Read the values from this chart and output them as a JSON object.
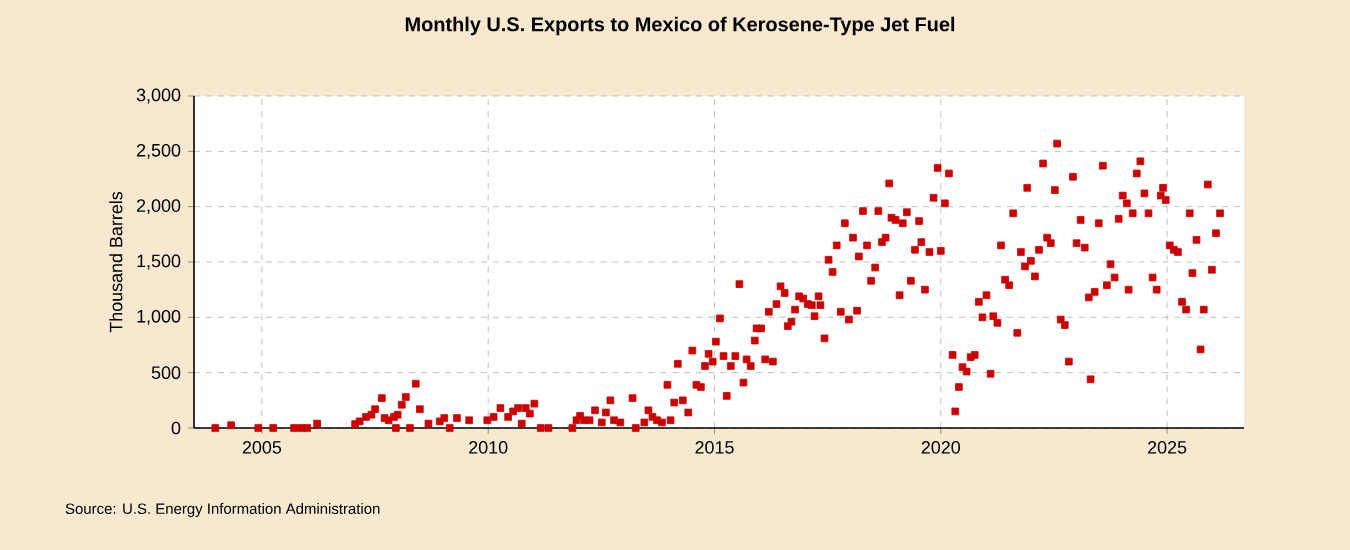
{
  "chart_data": {
    "type": "scatter",
    "title": "Monthly U.S. Exports to Mexico of Kerosene-Type Jet Fuel",
    "ylabel": "Thousand Barrels",
    "annotations": [
      "Source: U.S. Energy Information Administration"
    ],
    "color": "#cc0000",
    "marker": "square",
    "grid": true,
    "xlim": [
      2003.5,
      2026.7
    ],
    "ylim": [
      0,
      3000
    ],
    "xticks": [
      2005,
      2010,
      2015,
      2020,
      2025
    ],
    "yticks": [
      {
        "value": 0,
        "label": "0"
      },
      {
        "value": 500,
        "label": "500"
      },
      {
        "value": 1000,
        "label": "1,000"
      },
      {
        "value": 1500,
        "label": "1,500"
      },
      {
        "value": 2000,
        "label": "2,000"
      },
      {
        "value": 2500,
        "label": "2,500"
      },
      {
        "value": 3000,
        "label": "3,000"
      }
    ],
    "x": [
      2003.97,
      2004.32,
      2004.92,
      2005.25,
      2005.71,
      2005.87,
      2006.0,
      2006.22,
      2007.06,
      2007.16,
      2007.3,
      2007.42,
      2007.5,
      2007.65,
      2007.71,
      2007.8,
      2007.92,
      2007.96,
      2008.0,
      2008.09,
      2008.18,
      2008.27,
      2008.4,
      2008.49,
      2008.68,
      2008.93,
      2009.03,
      2009.15,
      2009.31,
      2009.58,
      2009.98,
      2010.12,
      2010.27,
      2010.44,
      2010.55,
      2010.66,
      2010.74,
      2010.83,
      2010.92,
      2011.02,
      2011.16,
      2011.33,
      2011.86,
      2011.95,
      2012.03,
      2012.12,
      2012.24,
      2012.36,
      2012.51,
      2012.6,
      2012.7,
      2012.78,
      2012.92,
      2013.19,
      2013.26,
      2013.45,
      2013.54,
      2013.63,
      2013.73,
      2013.84,
      2013.96,
      2014.03,
      2014.11,
      2014.19,
      2014.3,
      2014.42,
      2014.51,
      2014.6,
      2014.7,
      2014.79,
      2014.87,
      2014.96,
      2015.03,
      2015.12,
      2015.2,
      2015.27,
      2015.36,
      2015.46,
      2015.55,
      2015.64,
      2015.71,
      2015.8,
      2015.89,
      2015.93,
      2016.03,
      2016.12,
      2016.2,
      2016.29,
      2016.37,
      2016.46,
      2016.55,
      2016.62,
      2016.7,
      2016.78,
      2016.87,
      2016.96,
      2017.06,
      2017.15,
      2017.21,
      2017.3,
      2017.34,
      2017.43,
      2017.52,
      2017.61,
      2017.7,
      2017.79,
      2017.88,
      2017.97,
      2018.06,
      2018.15,
      2018.19,
      2018.28,
      2018.37,
      2018.46,
      2018.55,
      2018.62,
      2018.7,
      2018.78,
      2018.86,
      2018.91,
      2019.0,
      2019.09,
      2019.16,
      2019.25,
      2019.34,
      2019.43,
      2019.52,
      2019.57,
      2019.65,
      2019.75,
      2019.84,
      2019.93,
      2020.0,
      2020.09,
      2020.18,
      2020.26,
      2020.32,
      2020.4,
      2020.48,
      2020.57,
      2020.66,
      2020.75,
      2020.84,
      2020.92,
      2021.01,
      2021.1,
      2021.16,
      2021.25,
      2021.33,
      2021.42,
      2021.51,
      2021.6,
      2021.69,
      2021.77,
      2021.86,
      2021.91,
      2021.99,
      2022.08,
      2022.17,
      2022.26,
      2022.35,
      2022.43,
      2022.52,
      2022.57,
      2022.65,
      2022.74,
      2022.83,
      2022.92,
      2023.0,
      2023.09,
      2023.18,
      2023.27,
      2023.31,
      2023.4,
      2023.49,
      2023.58,
      2023.67,
      2023.75,
      2023.84,
      2023.93,
      2024.02,
      2024.11,
      2024.15,
      2024.24,
      2024.33,
      2024.41,
      2024.5,
      2024.59,
      2024.68,
      2024.77,
      2024.86,
      2024.91,
      2024.97,
      2025.06,
      2025.15,
      2025.24,
      2025.33,
      2025.42,
      2025.5,
      2025.56,
      2025.65,
      2025.74,
      2025.81,
      2025.9,
      2025.99,
      2026.08,
      2026.17
    ],
    "values": [
      0,
      25,
      0,
      0,
      0,
      0,
      0,
      40,
      35,
      60,
      100,
      120,
      170,
      270,
      90,
      70,
      100,
      0,
      120,
      210,
      280,
      0,
      400,
      170,
      40,
      60,
      90,
      0,
      90,
      70,
      70,
      100,
      180,
      100,
      150,
      180,
      40,
      180,
      130,
      220,
      0,
      0,
      0,
      70,
      110,
      70,
      70,
      160,
      50,
      140,
      250,
      70,
      50,
      270,
      0,
      50,
      160,
      100,
      70,
      50,
      390,
      70,
      230,
      580,
      250,
      140,
      700,
      390,
      370,
      560,
      670,
      600,
      780,
      990,
      650,
      290,
      560,
      650,
      1300,
      410,
      620,
      560,
      790,
      900,
      900,
      620,
      1050,
      600,
      1120,
      1280,
      1220,
      920,
      960,
      1070,
      1190,
      1170,
      1120,
      1110,
      1010,
      1190,
      1110,
      810,
      1520,
      1410,
      1650,
      1050,
      1850,
      980,
      1720,
      1060,
      1550,
      1960,
      1650,
      1330,
      1450,
      1960,
      1680,
      1720,
      2210,
      1900,
      1880,
      1200,
      1850,
      1950,
      1330,
      1610,
      1870,
      1680,
      1250,
      1590,
      2080,
      2350,
      1600,
      2030,
      2300,
      660,
      150,
      370,
      550,
      510,
      640,
      660,
      1140,
      1000,
      1200,
      490,
      1010,
      950,
      1650,
      1340,
      1290,
      1940,
      860,
      1590,
      1460,
      2170,
      1510,
      1370,
      1610,
      2390,
      1720,
      1670,
      2150,
      2570,
      980,
      930,
      600,
      2270,
      1670,
      1880,
      1630,
      1180,
      440,
      1230,
      1850,
      2370,
      1290,
      1480,
      1360,
      1890,
      2100,
      2030,
      1250,
      1940,
      2300,
      2410,
      2120,
      1940,
      1360,
      1250,
      2100,
      2170,
      2060,
      1650,
      1610,
      1590,
      1140,
      1070,
      1940,
      1400,
      1700,
      710,
      1070,
      2200,
      1430,
      1760,
      1940
    ]
  }
}
